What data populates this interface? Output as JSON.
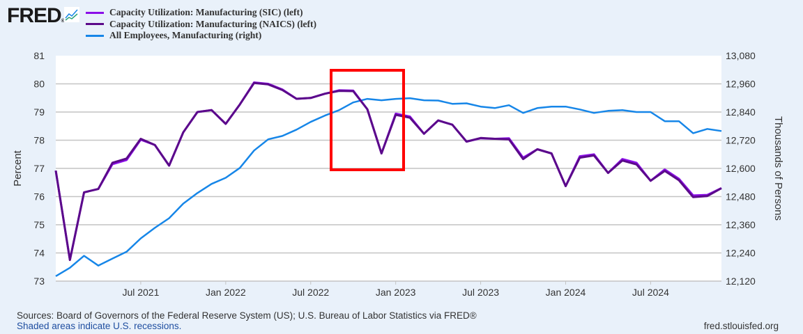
{
  "header": {
    "logo": "FRED",
    "logo_suffix": "®"
  },
  "footer": {
    "sources": "Sources: Board of Governors of the Federal Reserve System (US); U.S. Bureau of Labor Statistics via FRED®",
    "recessions": "Shaded areas indicate U.S. recessions.",
    "url": "fred.stlouisfed.org"
  },
  "chart_data": {
    "type": "line",
    "title": "",
    "x_start": "2021-01",
    "x_freq": "monthly",
    "xlabel": "",
    "ylabel": "Percent",
    "ylabel_right": "Thousands of Persons",
    "ylim": [
      73,
      81
    ],
    "ylim_right": [
      12120,
      13080
    ],
    "grid": true,
    "legend_placement": "top-left",
    "x_ticks": [
      {
        "label": "Jul 2021",
        "index": 6
      },
      {
        "label": "Jan 2022",
        "index": 12
      },
      {
        "label": "Jul 2022",
        "index": 18
      },
      {
        "label": "Jan 2023",
        "index": 24
      },
      {
        "label": "Jul 2023",
        "index": 30
      },
      {
        "label": "Jan 2024",
        "index": 36
      },
      {
        "label": "Jul 2024",
        "index": 42
      }
    ],
    "y_ticks": [
      "73",
      "74",
      "75",
      "76",
      "77",
      "78",
      "79",
      "80",
      "81"
    ],
    "y_ticks_right": [
      "12,120",
      "12,240",
      "12,360",
      "12,480",
      "12,600",
      "12,720",
      "12,840",
      "12,960",
      "13,080"
    ],
    "series": [
      {
        "name": "Capacity Utilization: Manufacturing (SIC) (left)",
        "axis": "left",
        "color": "#8b0ee8",
        "values": [
          76.92,
          73.75,
          76.15,
          76.27,
          77.15,
          77.3,
          78.02,
          77.83,
          77.1,
          78.28,
          79.0,
          79.07,
          78.58,
          79.27,
          80.05,
          80.0,
          79.8,
          79.47,
          79.5,
          79.65,
          79.77,
          79.76,
          79.1,
          77.53,
          78.94,
          78.84,
          78.23,
          78.7,
          78.55,
          77.95,
          78.07,
          78.05,
          78.07,
          77.38,
          77.68,
          77.53,
          76.37,
          77.43,
          77.5,
          76.84,
          77.33,
          77.2,
          76.56,
          76.96,
          76.63,
          76.04,
          76.06,
          76.3
        ]
      },
      {
        "name": "Capacity Utilization: Manufacturing (NAICS) (left)",
        "axis": "left",
        "color": "#5b0a8a",
        "values": [
          76.92,
          73.75,
          76.15,
          76.27,
          77.2,
          77.35,
          78.05,
          77.83,
          77.1,
          78.28,
          79.0,
          79.07,
          78.58,
          79.27,
          80.03,
          79.98,
          79.78,
          79.47,
          79.5,
          79.65,
          79.75,
          79.74,
          79.1,
          77.53,
          78.9,
          78.8,
          78.23,
          78.7,
          78.55,
          77.95,
          78.08,
          78.05,
          78.03,
          77.33,
          77.68,
          77.53,
          76.37,
          77.38,
          77.46,
          76.84,
          77.28,
          77.14,
          76.56,
          76.91,
          76.58,
          75.98,
          76.02,
          76.3
        ]
      },
      {
        "name": "All Employees, Manufacturing (right)",
        "axis": "right",
        "color": "#1686e8",
        "values": [
          12141,
          12177,
          12228,
          12186,
          12216,
          12245,
          12302,
          12347,
          12388,
          12450,
          12495,
          12534,
          12560,
          12602,
          12676,
          12724,
          12738,
          12765,
          12798,
          12825,
          12848,
          12881,
          12896,
          12890,
          12896,
          12899,
          12890,
          12889,
          12875,
          12877,
          12863,
          12857,
          12869,
          12836,
          12857,
          12863,
          12863,
          12851,
          12836,
          12845,
          12848,
          12840,
          12840,
          12801,
          12801,
          12750,
          12768,
          12759
        ]
      }
    ]
  }
}
